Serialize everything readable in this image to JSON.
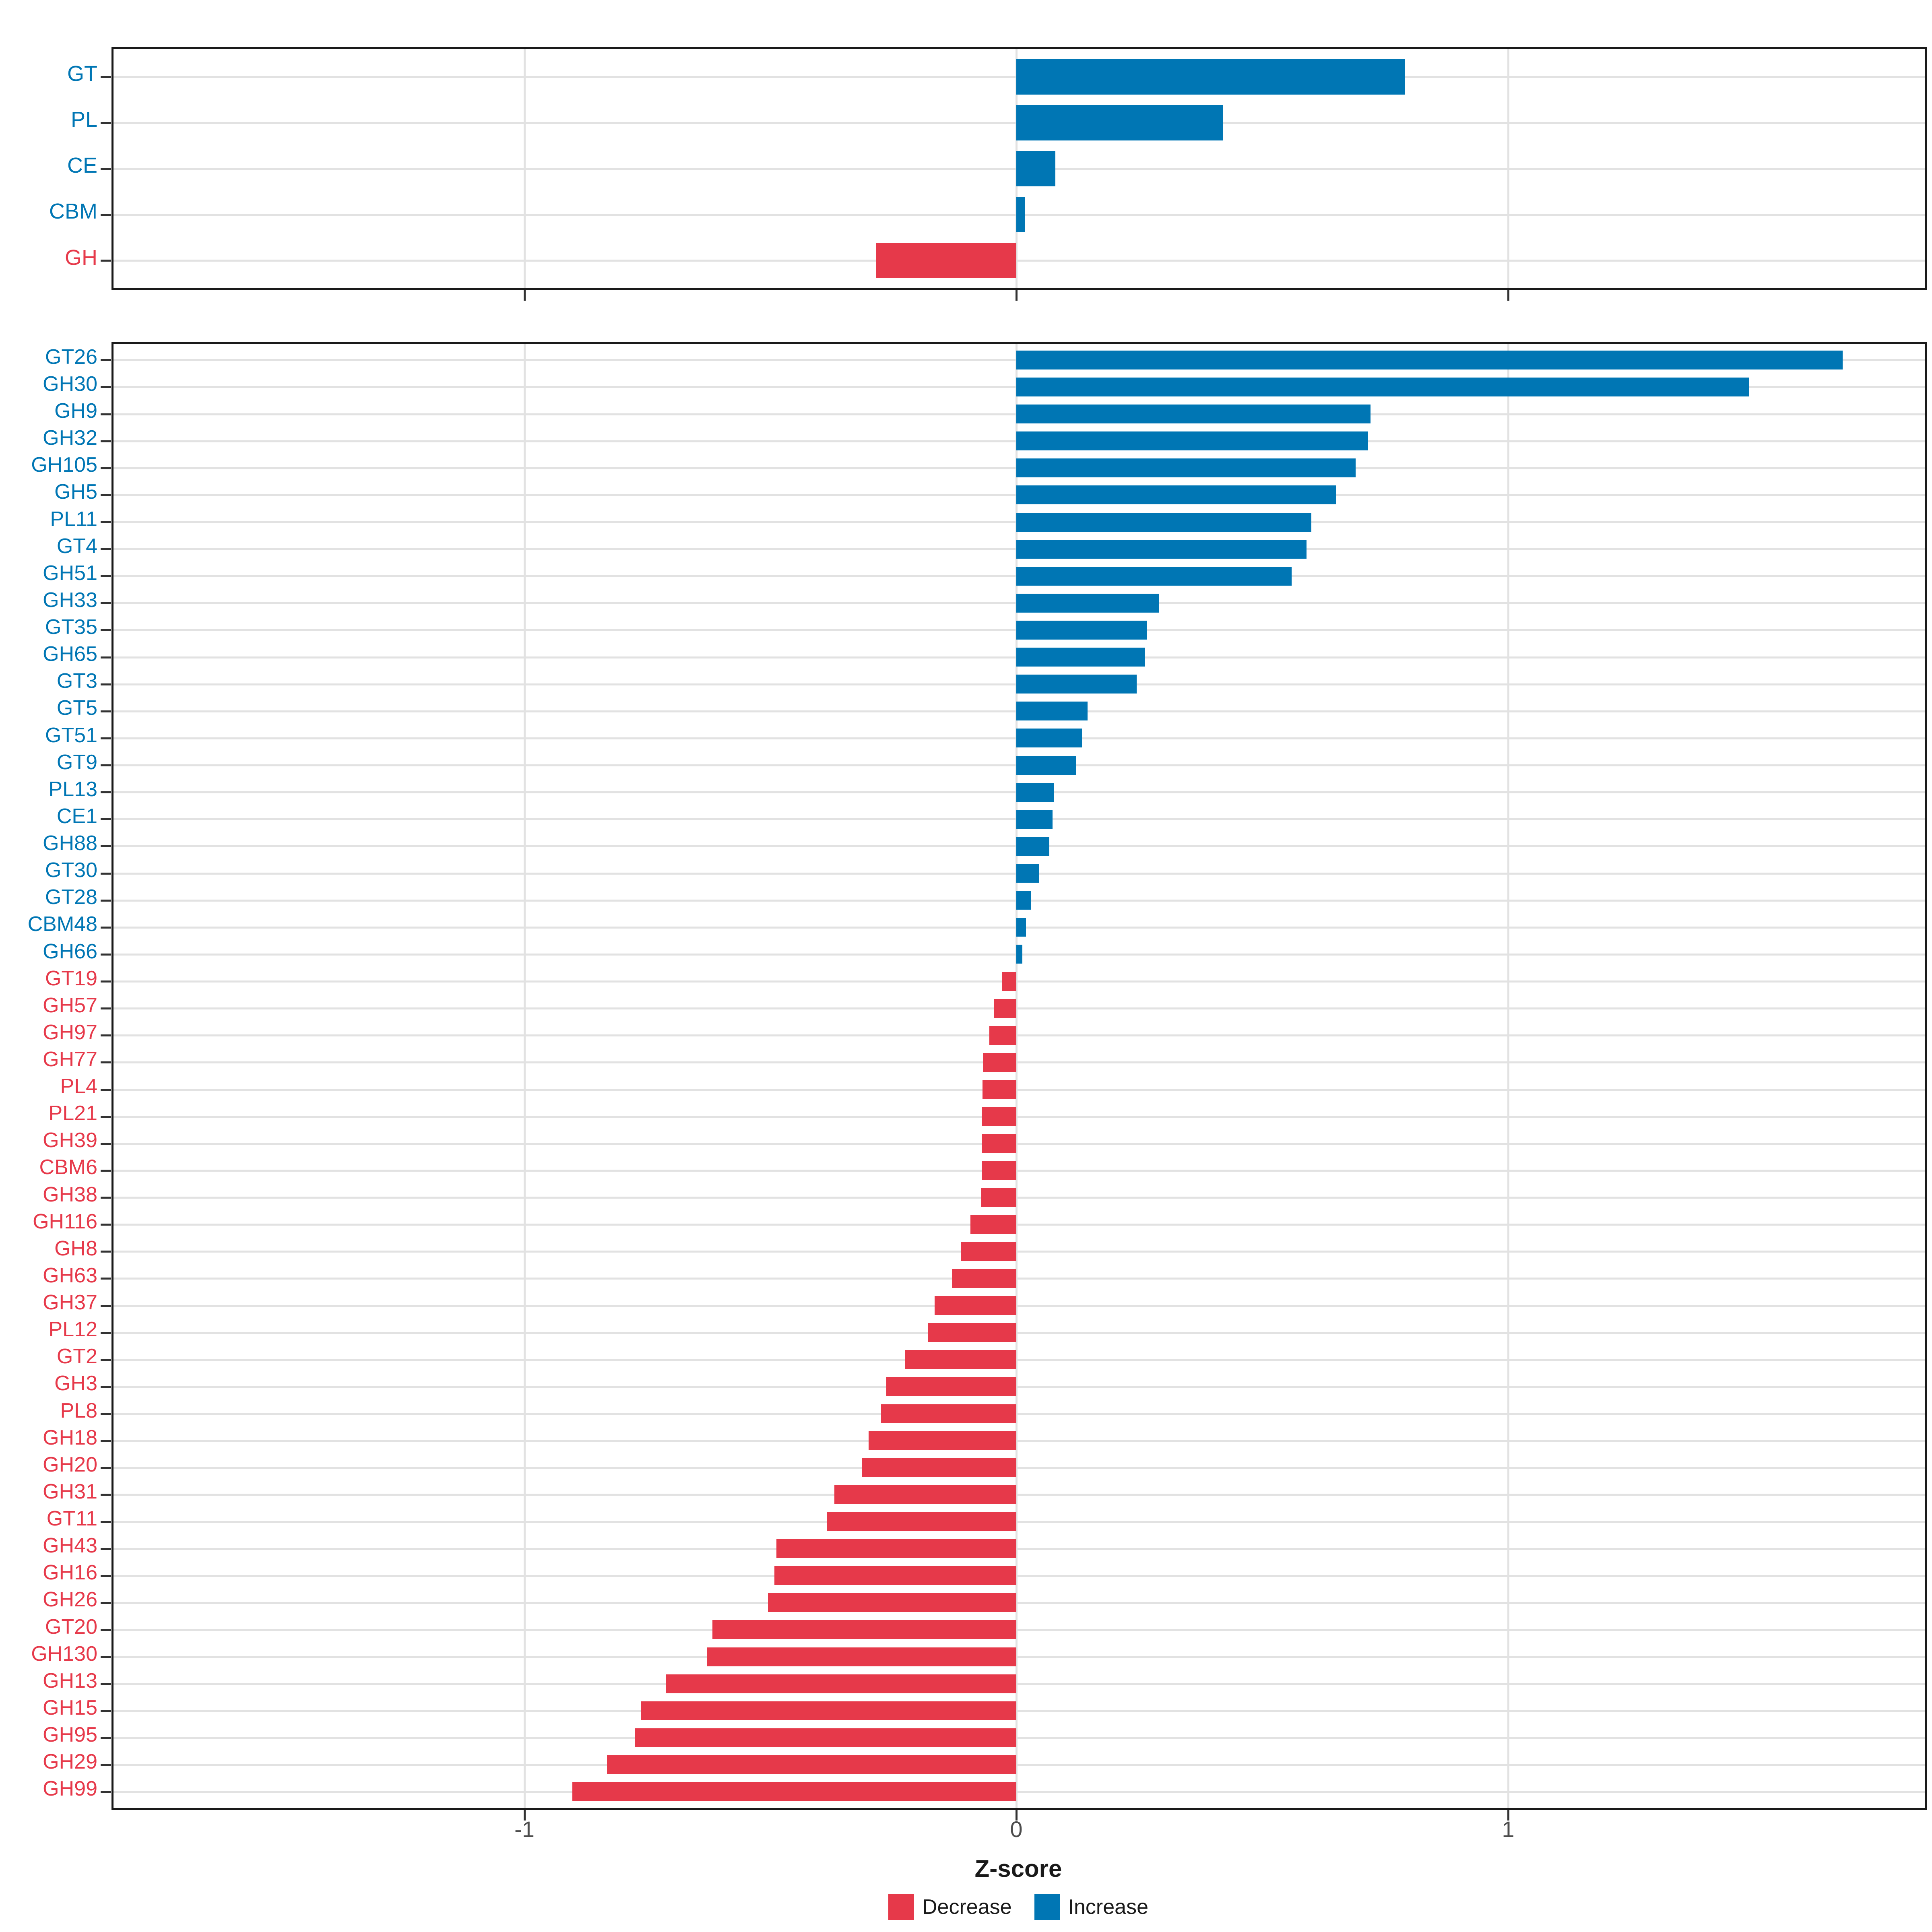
{
  "colors": {
    "increase": "#0076B4",
    "decrease": "#E6394A",
    "grid": "#E2E2E2",
    "axis_line": "#1A1A1A",
    "tick_mark": "#333333",
    "tick_label": "#4D4D4D",
    "title_text": "#1A1A1A"
  },
  "axis": {
    "title": "Z-score",
    "tick_labels": [
      "-1",
      "0",
      "1"
    ],
    "tick_values": [
      -1,
      0,
      1
    ]
  },
  "legend": {
    "items": [
      {
        "label": "Decrease",
        "color_key": "decrease"
      },
      {
        "label": "Increase",
        "color_key": "increase"
      }
    ]
  },
  "chart_data": {
    "type": "bar",
    "orientation": "horizontal",
    "title": "",
    "xlabel": "Z-score",
    "ylabel": "",
    "xlim": [
      -1.84,
      1.85
    ],
    "x_ticks": [
      -1,
      0,
      1
    ],
    "grid": true,
    "legend_position": "bottom",
    "series_coloring": "sign",
    "legend_entries": [
      "Decrease",
      "Increase"
    ],
    "panels": [
      {
        "name": "classes",
        "categories": [
          "GT",
          "PL",
          "CE",
          "CBM",
          "GH"
        ],
        "values": [
          0.79,
          0.42,
          0.079,
          0.018,
          -0.286
        ]
      },
      {
        "name": "families",
        "categories": [
          "GT26",
          "GH30",
          "GH9",
          "GH32",
          "GH105",
          "GH5",
          "PL11",
          "GT4",
          "GH51",
          "GH33",
          "GT35",
          "GH65",
          "GT3",
          "GT5",
          "GT51",
          "GT9",
          "PL13",
          "CE1",
          "GH88",
          "GT30",
          "GT28",
          "CBM48",
          "GH66",
          "GT19",
          "GH57",
          "GH97",
          "GH77",
          "PL4",
          "PL21",
          "GH39",
          "CBM6",
          "GH38",
          "GH116",
          "GH8",
          "GH63",
          "GH37",
          "PL12",
          "GT2",
          "GH3",
          "PL8",
          "GH18",
          "GH20",
          "GH31",
          "GT11",
          "GH43",
          "GH16",
          "GH26",
          "GT20",
          "GH130",
          "GH13",
          "GH15",
          "GH95",
          "GH29",
          "GH99"
        ],
        "values": [
          1.68,
          1.49,
          0.72,
          0.715,
          0.69,
          0.65,
          0.6,
          0.59,
          0.56,
          0.29,
          0.265,
          0.262,
          0.245,
          0.145,
          0.133,
          0.122,
          0.077,
          0.074,
          0.067,
          0.046,
          0.03,
          0.02,
          0.012,
          -0.029,
          -0.045,
          -0.055,
          -0.068,
          -0.069,
          -0.07,
          -0.07,
          -0.07,
          -0.071,
          -0.093,
          -0.113,
          -0.131,
          -0.166,
          -0.179,
          -0.226,
          -0.264,
          -0.275,
          -0.3,
          -0.314,
          -0.37,
          -0.385,
          -0.488,
          -0.492,
          -0.505,
          -0.618,
          -0.629,
          -0.712,
          -0.763,
          -0.776,
          -0.832,
          -0.903
        ]
      }
    ]
  }
}
